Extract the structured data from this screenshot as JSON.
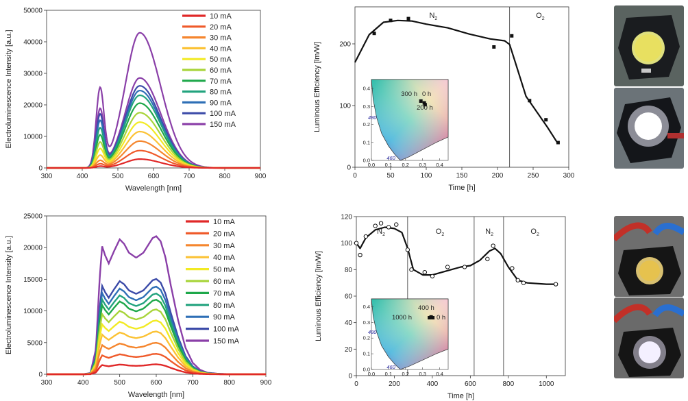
{
  "chart_data": [
    {
      "type": "line",
      "xlabel": "Wavelength [nm]",
      "ylabel": "Electroluminescence Intensity [a.u.]",
      "xlim": [
        300,
        900
      ],
      "ylim": [
        0,
        50000
      ],
      "xticks": [
        300,
        400,
        500,
        600,
        700,
        800,
        900
      ],
      "yticks": [
        0,
        10000,
        20000,
        30000,
        40000,
        50000
      ],
      "legend_position": "top-right",
      "peaks": [
        450,
        562
      ],
      "series": [
        {
          "name": "10 mA",
          "color": "#e02828",
          "peak1": 500,
          "peak2": 2800
        },
        {
          "name": "20 mA",
          "color": "#ef5a2a",
          "peak1": 1200,
          "peak2": 5500
        },
        {
          "name": "30 mA",
          "color": "#f5862e",
          "peak1": 2200,
          "peak2": 8500
        },
        {
          "name": "40 mA",
          "color": "#fbc234",
          "peak1": 3800,
          "peak2": 11500
        },
        {
          "name": "50 mA",
          "color": "#f2ea24",
          "peak1": 5800,
          "peak2": 14500
        },
        {
          "name": "60 mA",
          "color": "#a8d43a",
          "peak1": 7800,
          "peak2": 17500
        },
        {
          "name": "70 mA",
          "color": "#1ea84a",
          "peak1": 10000,
          "peak2": 20500
        },
        {
          "name": "80 mA",
          "color": "#22a37e",
          "peak1": 12200,
          "peak2": 23000
        },
        {
          "name": "90 mA",
          "color": "#2e6fb6",
          "peak1": 14500,
          "peak2": 24500
        },
        {
          "name": "100 mA",
          "color": "#3b4aa8",
          "peak1": 16500,
          "peak2": 26000
        },
        {
          "name": "150 mA",
          "color": "#8a3fa8",
          "peak1": 18200,
          "peak2": 28500
        },
        {
          "name": "",
          "color": "#8a3fa8",
          "peak1": 24500,
          "peak2": 42800
        }
      ]
    },
    {
      "type": "line",
      "xlabel": "Time [h]",
      "ylabel": "Luminous Efficiency [lm/W]",
      "xlim": [
        0,
        300
      ],
      "ylim": [
        0,
        260
      ],
      "xticks": [
        0,
        50,
        100,
        150,
        200,
        250,
        300
      ],
      "yticks": [
        0,
        100,
        200
      ],
      "divider_x": [
        217
      ],
      "region_labels": [
        {
          "text": "N",
          "sub": "2",
          "x": 110,
          "y": 242
        },
        {
          "text": "O",
          "sub": "2",
          "x": 260,
          "y": 242
        }
      ],
      "points": {
        "x": [
          27,
          50,
          75,
          195,
          220,
          245,
          268,
          285
        ],
        "y": [
          217,
          238,
          241,
          195,
          213,
          108,
          77,
          40
        ]
      },
      "fit": {
        "x": [
          0,
          20,
          40,
          60,
          80,
          100,
          130,
          160,
          190,
          210,
          217,
          225,
          240,
          255,
          270,
          285
        ],
        "y": [
          170,
          215,
          235,
          238,
          237,
          232,
          226,
          216,
          208,
          205,
          199,
          170,
          115,
          90,
          65,
          38
        ]
      },
      "inset": {
        "xticks": [
          "0.0",
          "0.1",
          "0.2",
          "0.3",
          "0.4"
        ],
        "yticks": [
          "0.0",
          "0.1",
          "0.2",
          "0.3",
          "0.4"
        ],
        "wavelength_labels": [
          "480",
          "460"
        ],
        "point_labels": [
          "300 h",
          "0 h",
          "200 h"
        ],
        "points": [
          [
            0.29,
            0.33
          ],
          [
            0.31,
            0.32
          ],
          [
            0.315,
            0.31
          ]
        ]
      }
    },
    {
      "type": "line",
      "xlabel": "Wavelength [nm]",
      "ylabel": "Electroluminescence Intensity [a.u.]",
      "xlim": [
        300,
        900
      ],
      "ylim": [
        0,
        25000
      ],
      "xticks": [
        300,
        400,
        500,
        600,
        700,
        800,
        900
      ],
      "yticks": [
        0,
        5000,
        10000,
        15000,
        20000,
        25000
      ],
      "legend_position": "top-right",
      "series": [
        {
          "name": "10 mA",
          "color": "#e02828",
          "scale": 0.072
        },
        {
          "name": "20 mA",
          "color": "#ef5a2a",
          "scale": 0.148
        },
        {
          "name": "30 mA",
          "color": "#f5862e",
          "scale": 0.228
        },
        {
          "name": "40 mA",
          "color": "#fbc234",
          "scale": 0.31
        },
        {
          "name": "50 mA",
          "color": "#f2ea24",
          "scale": 0.39
        },
        {
          "name": "60 mA",
          "color": "#a8d43a",
          "scale": 0.47
        },
        {
          "name": "70 mA",
          "color": "#1ea84a",
          "scale": 0.54
        },
        {
          "name": "80 mA",
          "color": "#22a37e",
          "scale": 0.585
        },
        {
          "name": "90 mA",
          "color": "#2e6fb6",
          "scale": 0.635
        },
        {
          "name": "100 mA",
          "color": "#3b4aa8",
          "scale": 0.69
        },
        {
          "name": "150 mA",
          "color": "#8a3fa8",
          "scale": 1.0
        }
      ],
      "base_shape": {
        "x": [
          400,
          420,
          435,
          445,
          452,
          460,
          470,
          485,
          500,
          512,
          525,
          545,
          565,
          590,
          600,
          612,
          625,
          640,
          660,
          680,
          700,
          720,
          740,
          770,
          800,
          900
        ],
        "y": [
          0,
          200,
          4000,
          15000,
          20200,
          18800,
          17500,
          19500,
          21300,
          20600,
          19200,
          18400,
          19200,
          21500,
          21800,
          21000,
          18500,
          14000,
          8500,
          4200,
          1800,
          700,
          250,
          80,
          20,
          0
        ]
      }
    },
    {
      "type": "line",
      "xlabel": "Time [h]",
      "ylabel": "Luminous Efficiency [lm/W]",
      "xlim": [
        0,
        1100
      ],
      "ylim": [
        0,
        120
      ],
      "xticks": [
        0,
        200,
        400,
        600,
        800,
        1000
      ],
      "yticks": [
        0,
        20,
        40,
        60,
        80,
        100,
        120
      ],
      "divider_x": [
        270,
        620,
        775
      ],
      "region_labels": [
        {
          "text": "N",
          "sub": "2",
          "x": 130,
          "y": 107
        },
        {
          "text": "O",
          "sub": "2",
          "x": 440,
          "y": 107
        },
        {
          "text": "N",
          "sub": "2",
          "x": 700,
          "y": 107
        },
        {
          "text": "O",
          "sub": "2",
          "x": 940,
          "y": 107
        }
      ],
      "points": {
        "x": [
          0,
          20,
          50,
          100,
          130,
          170,
          210,
          270,
          290,
          360,
          400,
          480,
          570,
          690,
          720,
          820,
          850,
          880,
          1050
        ],
        "y": [
          100,
          91,
          105,
          113,
          115,
          112,
          114,
          95,
          80,
          78,
          75,
          82,
          82,
          88,
          98,
          81,
          72,
          70,
          69
        ]
      },
      "fit": {
        "x": [
          0,
          20,
          50,
          100,
          150,
          200,
          240,
          270,
          300,
          350,
          400,
          450,
          500,
          550,
          600,
          650,
          700,
          730,
          760,
          800,
          850,
          900,
          1000,
          1050
        ],
        "y": [
          100,
          96,
          104,
          110,
          112,
          111,
          108,
          96,
          80,
          76,
          76,
          78,
          80,
          82,
          83,
          87,
          94,
          96,
          92,
          82,
          72,
          70,
          69,
          69
        ]
      },
      "inset": {
        "xticks": [
          "0.0",
          "0.1",
          "0.2",
          "0.3",
          "0.4"
        ],
        "yticks": [
          "0.0",
          "0.1",
          "0.2",
          "0.3",
          "0.4"
        ],
        "wavelength_labels": [
          "480",
          "460"
        ],
        "point_labels": [
          "400 h",
          "1000 h",
          "0 h"
        ],
        "points": [
          [
            0.34,
            0.33
          ],
          [
            0.35,
            0.335
          ],
          [
            0.36,
            0.33
          ]
        ]
      }
    }
  ],
  "photos": [
    {
      "name": "led-off-photo-top",
      "lens": "#e8e060"
    },
    {
      "name": "led-on-photo-top",
      "lens": "#ffffff"
    },
    {
      "name": "led-off-photo-bottom",
      "lens": "#e6c24e"
    },
    {
      "name": "led-on-photo-bottom",
      "lens": "#f4f0ff"
    }
  ]
}
